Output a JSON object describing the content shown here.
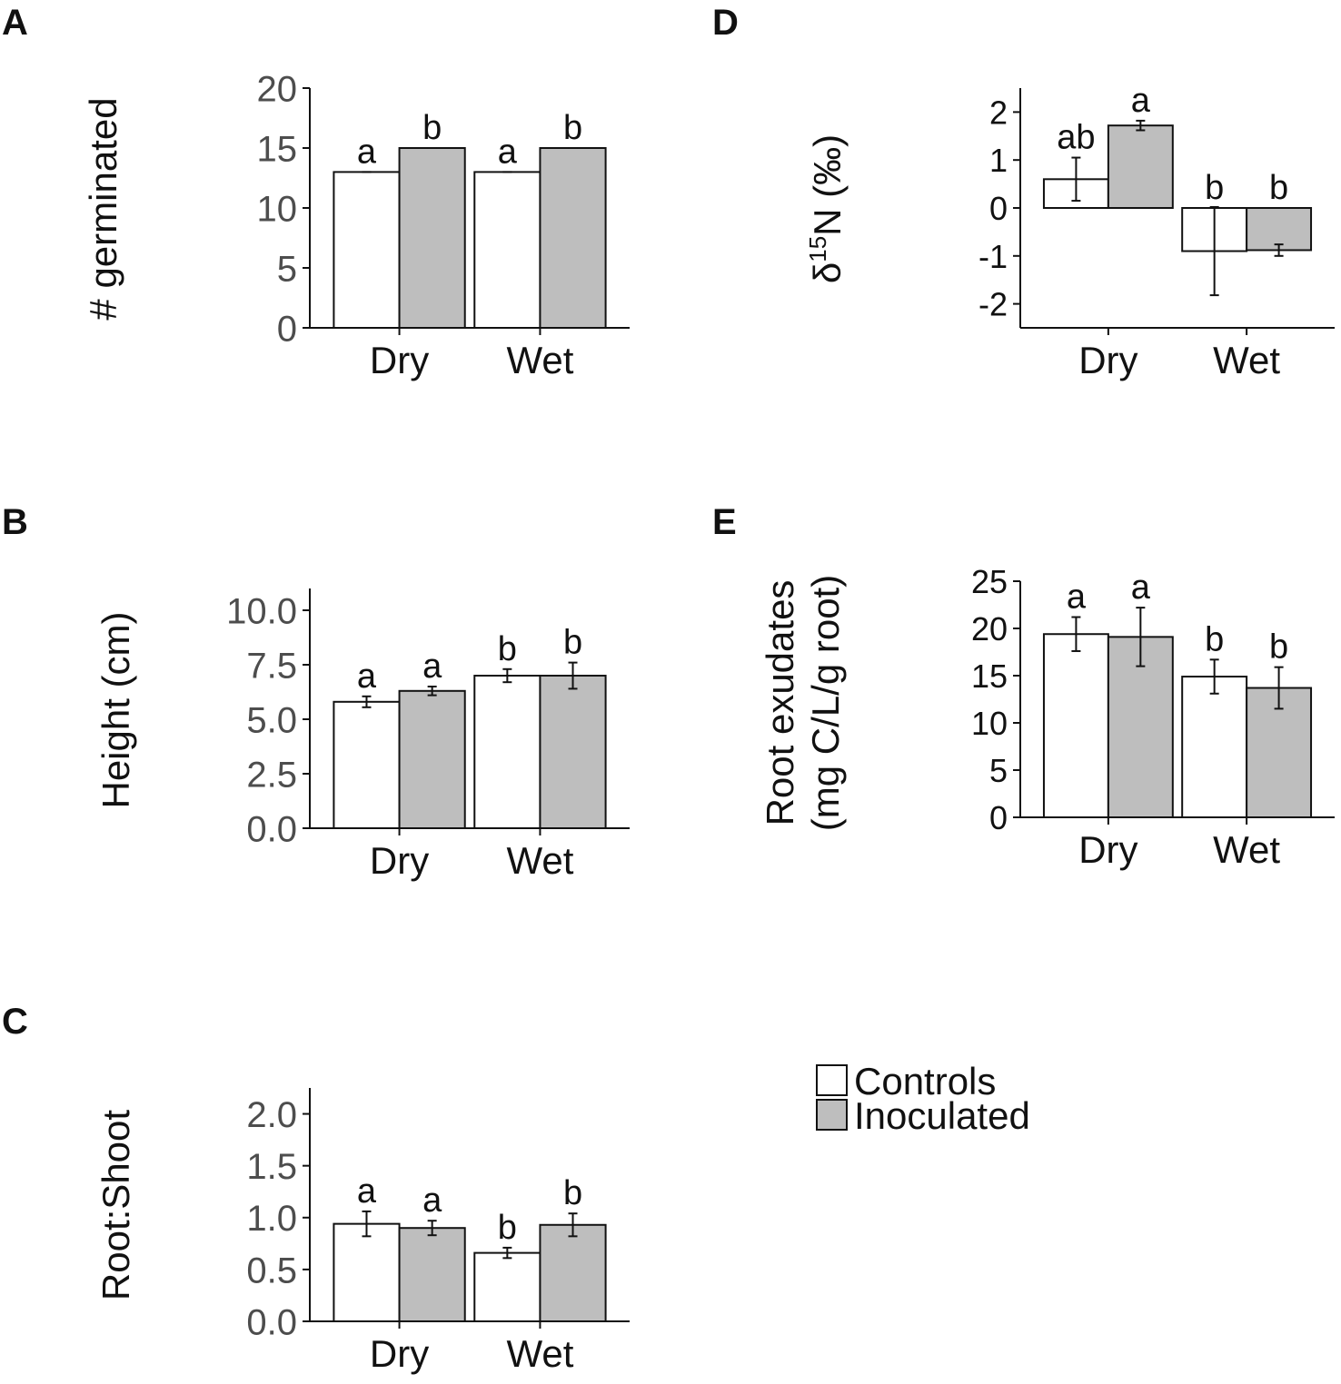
{
  "legend": {
    "entries": [
      {
        "label": "Controls",
        "color": "#ffffff"
      },
      {
        "label": "Inoculated",
        "color": "#bebebe"
      }
    ]
  },
  "chart_data": [
    {
      "id": "A",
      "panel_label": "A",
      "type": "bar",
      "ylabel": "# germinated",
      "categories": [
        "Dry",
        "Wet"
      ],
      "ylim": [
        0,
        20
      ],
      "yticks": [
        0,
        5,
        10,
        15,
        20
      ],
      "ytick_labels": [
        "0",
        "5",
        "10",
        "15",
        "20"
      ],
      "series": [
        {
          "name": "Controls",
          "color": "#ffffff",
          "values": [
            13,
            13
          ],
          "errors": [
            0,
            0
          ],
          "letters": [
            "a",
            "a"
          ]
        },
        {
          "name": "Inoculated",
          "color": "#bebebe",
          "values": [
            15,
            15
          ],
          "errors": [
            0,
            0
          ],
          "letters": [
            "b",
            "b"
          ]
        }
      ]
    },
    {
      "id": "B",
      "panel_label": "B",
      "type": "bar",
      "ylabel": "Height (cm)",
      "categories": [
        "Dry",
        "Wet"
      ],
      "ylim": [
        0,
        11
      ],
      "yticks": [
        0,
        2.5,
        5,
        7.5,
        10
      ],
      "ytick_labels": [
        "0.0",
        "2.5",
        "5.0",
        "7.5",
        "10.0"
      ],
      "series": [
        {
          "name": "Controls",
          "color": "#ffffff",
          "values": [
            5.8,
            7.0
          ],
          "errors": [
            0.25,
            0.3
          ],
          "letters": [
            "a",
            "b"
          ]
        },
        {
          "name": "Inoculated",
          "color": "#bebebe",
          "values": [
            6.3,
            7.0
          ],
          "errors": [
            0.2,
            0.6
          ],
          "letters": [
            "a",
            "b"
          ]
        }
      ]
    },
    {
      "id": "C",
      "panel_label": "C",
      "type": "bar",
      "ylabel": "Root:Shoot",
      "categories": [
        "Dry",
        "Wet"
      ],
      "ylim": [
        0,
        2.25
      ],
      "yticks": [
        0,
        0.5,
        1,
        1.5,
        2
      ],
      "ytick_labels": [
        "0.0",
        "0.5",
        "1.0",
        "1.5",
        "2.0"
      ],
      "series": [
        {
          "name": "Controls",
          "color": "#ffffff",
          "values": [
            0.94,
            0.66
          ],
          "errors": [
            0.12,
            0.05
          ],
          "letters": [
            "a",
            "b"
          ]
        },
        {
          "name": "Inoculated",
          "color": "#bebebe",
          "values": [
            0.9,
            0.93
          ],
          "errors": [
            0.07,
            0.11
          ],
          "letters": [
            "a",
            "b"
          ]
        }
      ]
    },
    {
      "id": "D",
      "panel_label": "D",
      "type": "bar",
      "ylabel_parts": [
        "δ",
        "15",
        "N (‰)"
      ],
      "categories": [
        "Dry",
        "Wet"
      ],
      "ylim": [
        -2.5,
        2.5
      ],
      "yticks": [
        -2,
        -1,
        0,
        1,
        2
      ],
      "ytick_labels": [
        "-2",
        "-1",
        "0",
        "1",
        "2"
      ],
      "series": [
        {
          "name": "Controls",
          "color": "#ffffff",
          "values": [
            0.6,
            -0.9
          ],
          "errors": [
            0.45,
            0.92
          ],
          "letters": [
            "ab",
            "b"
          ]
        },
        {
          "name": "Inoculated",
          "color": "#bebebe",
          "values": [
            1.72,
            -0.88
          ],
          "errors": [
            0.1,
            0.12
          ],
          "letters": [
            "a",
            "b"
          ]
        }
      ]
    },
    {
      "id": "E",
      "panel_label": "E",
      "type": "bar",
      "ylabel_lines": [
        "Root exudates",
        "(mg C/L/g root)"
      ],
      "categories": [
        "Dry",
        "Wet"
      ],
      "ylim": [
        0,
        25
      ],
      "yticks": [
        0,
        5,
        10,
        15,
        20,
        25
      ],
      "ytick_labels": [
        "0",
        "5",
        "10",
        "15",
        "20",
        "25"
      ],
      "series": [
        {
          "name": "Controls",
          "color": "#ffffff",
          "values": [
            19.4,
            14.9
          ],
          "errors": [
            1.8,
            1.8
          ],
          "letters": [
            "a",
            "b"
          ]
        },
        {
          "name": "Inoculated",
          "color": "#bebebe",
          "values": [
            19.1,
            13.7
          ],
          "errors": [
            3.1,
            2.2
          ],
          "letters": [
            "a",
            "b"
          ]
        }
      ]
    }
  ]
}
